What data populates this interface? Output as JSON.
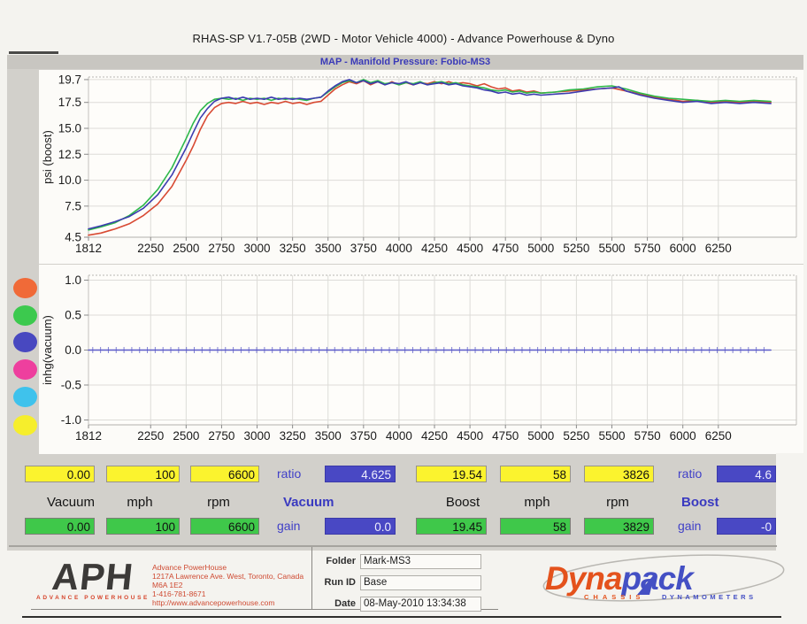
{
  "title": "RHAS-SP V1.7-05B   (2WD - Motor Vehicle 4000) - Advance Powerhouse & Dyno",
  "map_bar": "MAP - Manifold Pressure: Fobio-MS3",
  "legend": {
    "dots": [
      {
        "name": "orange",
        "color": "#f06a38"
      },
      {
        "name": "green",
        "color": "#3cc94e"
      },
      {
        "name": "indigo",
        "color": "#4848c0"
      },
      {
        "name": "magenta",
        "color": "#ee3f9e"
      },
      {
        "name": "cyan",
        "color": "#3fc2ec"
      },
      {
        "name": "yellow",
        "color": "#f6ee2c"
      }
    ]
  },
  "chart_data": [
    {
      "type": "line",
      "title": "MAP - Manifold Pressure: Fobio-MS3",
      "xlabel": "rpm",
      "ylabel": "psi (boost)",
      "xlim": [
        1812,
        6800
      ],
      "ylim": [
        4.5,
        19.95
      ],
      "x_ticks": [
        "1812",
        "2250",
        "2500",
        "2750",
        "3000",
        "3250",
        "3500",
        "3750",
        "4000",
        "4250",
        "4500",
        "4750",
        "5000",
        "5250",
        "5500",
        "5750",
        "6000",
        "6250"
      ],
      "y_ticks": [
        "19.7",
        "17.5",
        "15.0",
        "12.5",
        "10.0",
        "7.5",
        "4.5"
      ],
      "grid": true,
      "series": [
        {
          "name": "run-red",
          "color": "#d84a33",
          "points": [
            [
              1812,
              4.7
            ],
            [
              1900,
              4.9
            ],
            [
              2000,
              5.3
            ],
            [
              2100,
              5.8
            ],
            [
              2200,
              6.6
            ],
            [
              2300,
              7.7
            ],
            [
              2400,
              9.4
            ],
            [
              2500,
              11.9
            ],
            [
              2550,
              13.3
            ],
            [
              2600,
              14.9
            ],
            [
              2650,
              16.2
            ],
            [
              2700,
              17.0
            ],
            [
              2750,
              17.4
            ],
            [
              2800,
              17.5
            ],
            [
              2850,
              17.4
            ],
            [
              2900,
              17.6
            ],
            [
              2950,
              17.4
            ],
            [
              3000,
              17.5
            ],
            [
              3050,
              17.3
            ],
            [
              3100,
              17.5
            ],
            [
              3150,
              17.4
            ],
            [
              3200,
              17.6
            ],
            [
              3250,
              17.4
            ],
            [
              3300,
              17.5
            ],
            [
              3350,
              17.3
            ],
            [
              3400,
              17.5
            ],
            [
              3450,
              17.6
            ],
            [
              3500,
              18.2
            ],
            [
              3550,
              18.8
            ],
            [
              3600,
              19.2
            ],
            [
              3650,
              19.5
            ],
            [
              3700,
              19.3
            ],
            [
              3750,
              19.6
            ],
            [
              3800,
              19.2
            ],
            [
              3850,
              19.5
            ],
            [
              3900,
              19.2
            ],
            [
              3950,
              19.5
            ],
            [
              4000,
              19.2
            ],
            [
              4050,
              19.4
            ],
            [
              4100,
              19.2
            ],
            [
              4150,
              19.4
            ],
            [
              4200,
              19.3
            ],
            [
              4250,
              19.5
            ],
            [
              4300,
              19.3
            ],
            [
              4350,
              19.5
            ],
            [
              4400,
              19.3
            ],
            [
              4450,
              19.4
            ],
            [
              4500,
              19.3
            ],
            [
              4550,
              19.1
            ],
            [
              4600,
              19.3
            ],
            [
              4650,
              19.0
            ],
            [
              4700,
              18.8
            ],
            [
              4750,
              18.9
            ],
            [
              4800,
              18.6
            ],
            [
              4850,
              18.7
            ],
            [
              4900,
              18.5
            ],
            [
              4950,
              18.6
            ],
            [
              5000,
              18.4
            ],
            [
              5100,
              18.5
            ],
            [
              5200,
              18.6
            ],
            [
              5300,
              18.7
            ],
            [
              5400,
              18.8
            ],
            [
              5500,
              18.9
            ],
            [
              5600,
              18.6
            ],
            [
              5700,
              18.3
            ],
            [
              5800,
              18.0
            ],
            [
              5900,
              17.8
            ],
            [
              6000,
              17.6
            ],
            [
              6100,
              17.7
            ],
            [
              6200,
              17.5
            ],
            [
              6300,
              17.6
            ],
            [
              6400,
              17.5
            ],
            [
              6500,
              17.6
            ],
            [
              6620,
              17.5
            ]
          ]
        },
        {
          "name": "run-green",
          "color": "#2eb84a",
          "points": [
            [
              1812,
              5.2
            ],
            [
              1900,
              5.5
            ],
            [
              2000,
              5.9
            ],
            [
              2100,
              6.6
            ],
            [
              2200,
              7.6
            ],
            [
              2300,
              9.1
            ],
            [
              2400,
              11.2
            ],
            [
              2500,
              14.0
            ],
            [
              2550,
              15.5
            ],
            [
              2600,
              16.7
            ],
            [
              2650,
              17.4
            ],
            [
              2700,
              17.8
            ],
            [
              2750,
              17.9
            ],
            [
              2800,
              17.8
            ],
            [
              2850,
              17.9
            ],
            [
              2900,
              17.7
            ],
            [
              2950,
              17.9
            ],
            [
              3000,
              17.8
            ],
            [
              3050,
              17.9
            ],
            [
              3100,
              17.7
            ],
            [
              3150,
              17.9
            ],
            [
              3200,
              17.8
            ],
            [
              3250,
              17.9
            ],
            [
              3300,
              17.8
            ],
            [
              3350,
              17.7
            ],
            [
              3400,
              17.9
            ],
            [
              3450,
              18.0
            ],
            [
              3500,
              18.5
            ],
            [
              3550,
              19.0
            ],
            [
              3600,
              19.4
            ],
            [
              3650,
              19.6
            ],
            [
              3700,
              19.4
            ],
            [
              3750,
              19.7
            ],
            [
              3800,
              19.4
            ],
            [
              3850,
              19.6
            ],
            [
              3900,
              19.3
            ],
            [
              3950,
              19.4
            ],
            [
              4000,
              19.2
            ],
            [
              4050,
              19.4
            ],
            [
              4100,
              19.3
            ],
            [
              4150,
              19.5
            ],
            [
              4200,
              19.2
            ],
            [
              4250,
              19.4
            ],
            [
              4300,
              19.5
            ],
            [
              4350,
              19.3
            ],
            [
              4400,
              19.4
            ],
            [
              4450,
              19.2
            ],
            [
              4500,
              19.1
            ],
            [
              4550,
              19.0
            ],
            [
              4600,
              18.9
            ],
            [
              4650,
              18.7
            ],
            [
              4700,
              18.6
            ],
            [
              4750,
              18.7
            ],
            [
              4800,
              18.5
            ],
            [
              4850,
              18.6
            ],
            [
              4900,
              18.4
            ],
            [
              4950,
              18.5
            ],
            [
              5000,
              18.4
            ],
            [
              5100,
              18.5
            ],
            [
              5200,
              18.7
            ],
            [
              5300,
              18.8
            ],
            [
              5400,
              19.0
            ],
            [
              5500,
              19.1
            ],
            [
              5600,
              18.8
            ],
            [
              5700,
              18.4
            ],
            [
              5800,
              18.1
            ],
            [
              5900,
              17.9
            ],
            [
              6000,
              17.8
            ],
            [
              6100,
              17.7
            ],
            [
              6200,
              17.6
            ],
            [
              6300,
              17.7
            ],
            [
              6400,
              17.6
            ],
            [
              6500,
              17.7
            ],
            [
              6620,
              17.6
            ]
          ]
        },
        {
          "name": "run-blue",
          "color": "#3c3cb0",
          "points": [
            [
              1812,
              5.3
            ],
            [
              1900,
              5.6
            ],
            [
              2000,
              6.0
            ],
            [
              2100,
              6.5
            ],
            [
              2200,
              7.3
            ],
            [
              2300,
              8.6
            ],
            [
              2400,
              10.5
            ],
            [
              2500,
              13.1
            ],
            [
              2550,
              14.6
            ],
            [
              2600,
              16.0
            ],
            [
              2650,
              16.9
            ],
            [
              2700,
              17.6
            ],
            [
              2750,
              17.9
            ],
            [
              2800,
              18.0
            ],
            [
              2850,
              17.8
            ],
            [
              2900,
              18.0
            ],
            [
              2950,
              17.8
            ],
            [
              3000,
              17.9
            ],
            [
              3050,
              17.8
            ],
            [
              3100,
              18.0
            ],
            [
              3150,
              17.8
            ],
            [
              3200,
              17.9
            ],
            [
              3250,
              17.8
            ],
            [
              3300,
              17.9
            ],
            [
              3350,
              17.8
            ],
            [
              3400,
              17.9
            ],
            [
              3450,
              18.0
            ],
            [
              3500,
              18.6
            ],
            [
              3550,
              19.1
            ],
            [
              3600,
              19.5
            ],
            [
              3650,
              19.7
            ],
            [
              3700,
              19.4
            ],
            [
              3750,
              19.6
            ],
            [
              3800,
              19.3
            ],
            [
              3850,
              19.5
            ],
            [
              3900,
              19.2
            ],
            [
              3950,
              19.4
            ],
            [
              4000,
              19.3
            ],
            [
              4050,
              19.5
            ],
            [
              4100,
              19.2
            ],
            [
              4150,
              19.4
            ],
            [
              4200,
              19.2
            ],
            [
              4250,
              19.3
            ],
            [
              4300,
              19.4
            ],
            [
              4350,
              19.2
            ],
            [
              4400,
              19.3
            ],
            [
              4450,
              19.1
            ],
            [
              4500,
              19.0
            ],
            [
              4550,
              18.9
            ],
            [
              4600,
              18.7
            ],
            [
              4650,
              18.6
            ],
            [
              4700,
              18.4
            ],
            [
              4750,
              18.5
            ],
            [
              4800,
              18.3
            ],
            [
              4850,
              18.4
            ],
            [
              4900,
              18.2
            ],
            [
              4950,
              18.3
            ],
            [
              5000,
              18.2
            ],
            [
              5100,
              18.3
            ],
            [
              5200,
              18.4
            ],
            [
              5300,
              18.6
            ],
            [
              5400,
              18.8
            ],
            [
              5500,
              18.9
            ],
            [
              5550,
              19.0
            ],
            [
              5600,
              18.6
            ],
            [
              5700,
              18.2
            ],
            [
              5800,
              17.9
            ],
            [
              5900,
              17.7
            ],
            [
              6000,
              17.5
            ],
            [
              6100,
              17.6
            ],
            [
              6200,
              17.4
            ],
            [
              6300,
              17.5
            ],
            [
              6400,
              17.4
            ],
            [
              6500,
              17.5
            ],
            [
              6620,
              17.4
            ]
          ]
        }
      ]
    },
    {
      "type": "line",
      "title": "",
      "xlabel": "rpm",
      "ylabel": "inhg(vacuum)",
      "xlim": [
        1812,
        6800
      ],
      "ylim": [
        -1.07,
        1.07
      ],
      "x_ticks": [
        "1812",
        "2250",
        "2500",
        "2750",
        "3000",
        "3250",
        "3500",
        "3750",
        "4000",
        "4250",
        "4500",
        "4750",
        "5000",
        "5250",
        "5500",
        "5750",
        "6000",
        "6250"
      ],
      "y_ticks": [
        "1.0",
        "0.5",
        "0.0",
        "-0.5",
        "-1.0"
      ],
      "grid": true,
      "series": [
        {
          "name": "vacuum-zero-line",
          "color": "#5b5bc8",
          "marker": "vticks",
          "points": [
            [
              1812,
              0.0
            ],
            [
              6620,
              0.0
            ]
          ]
        }
      ]
    }
  ],
  "readouts": {
    "panels": [
      {
        "peak_values": [
          "0.00",
          "100",
          "6600"
        ],
        "ratio_label": "ratio",
        "ratio_value": "4.625",
        "col_labels": [
          "Vacuum",
          "mph",
          "rpm"
        ],
        "section_label": "Vacuum",
        "current_values": [
          "0.00",
          "100",
          "6600"
        ],
        "gain_label": "gain",
        "gain_value": "0.0"
      },
      {
        "peak_values": [
          "19.54",
          "58",
          "3826"
        ],
        "ratio_label": "ratio",
        "ratio_value": "4.6",
        "col_labels": [
          "Boost",
          "mph",
          "rpm"
        ],
        "section_label": "Boost",
        "current_values": [
          "19.45",
          "58",
          "3829"
        ],
        "gain_label": "gain",
        "gain_value": "-0"
      }
    ]
  },
  "footer": {
    "aph": {
      "logo": "APH",
      "logo_sub": "ADVANCE POWERHOUSE",
      "address_lines": [
        "Advance PowerHouse",
        "1217A Lawrence Ave. West, Toronto, Canada M6A 1E2",
        "1-416-781-8671",
        "http://www.advancepowerhouse.com"
      ]
    },
    "fields": [
      {
        "label": "Folder",
        "value": "Mark-MS3"
      },
      {
        "label": "Run ID",
        "value": "Base"
      },
      {
        "label": "Date",
        "value": "08-May-2010  13:34:38"
      }
    ],
    "dynapack": {
      "part1": "Dyna",
      "part2": "pack",
      "sub1": "CHASSIS",
      "sub2": "DYNAMOMETERS",
      "color1": "#e4521c",
      "color2": "#4450c4"
    }
  }
}
